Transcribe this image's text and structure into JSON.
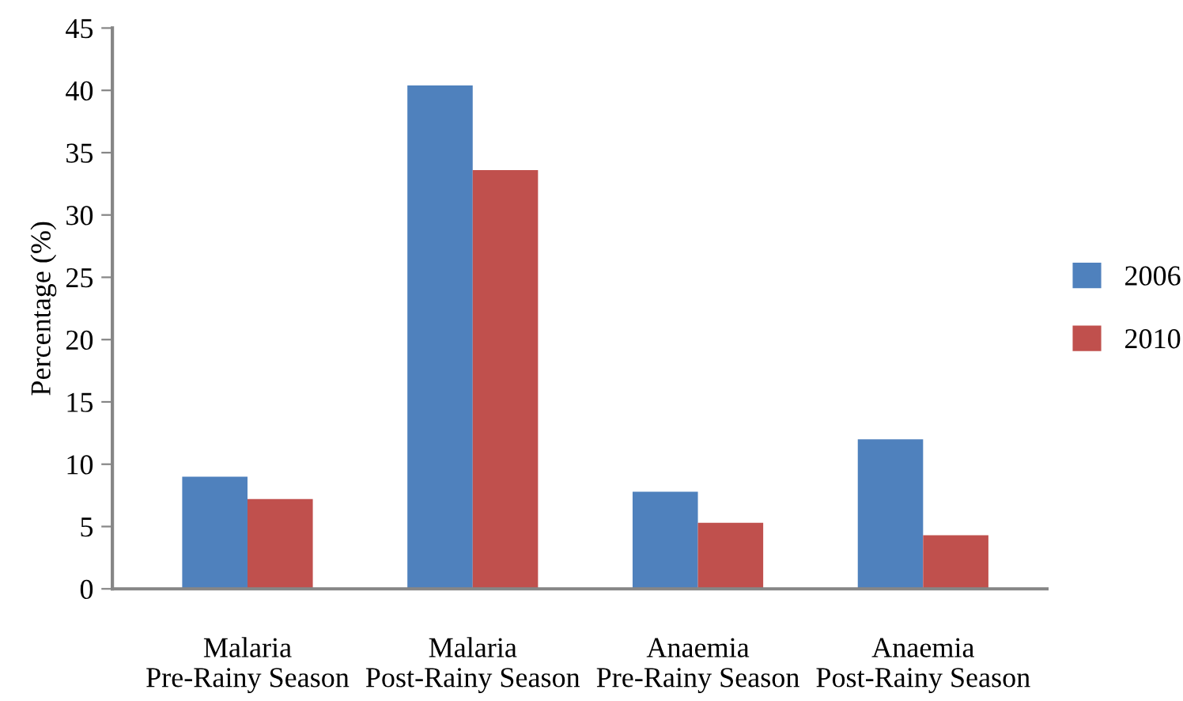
{
  "chart_data": {
    "type": "bar",
    "ylabel": "Percentage (%)",
    "categories": [
      "Malaria\nPre-Rainy Season",
      "Malaria\nPost-Rainy Season",
      "Anaemia\nPre-Rainy Season",
      "Anaemia\nPost-Rainy Season"
    ],
    "series": [
      {
        "name": "2006",
        "color": "#4f81bd",
        "values": [
          9.0,
          40.4,
          7.8,
          12.0
        ]
      },
      {
        "name": "2010",
        "color": "#c0504d",
        "values": [
          7.2,
          33.6,
          5.3,
          4.3
        ]
      }
    ],
    "ylim": [
      0,
      45
    ],
    "yticks": [
      0,
      5,
      10,
      15,
      20,
      25,
      30,
      35,
      40,
      45
    ],
    "grid": false,
    "legend": "right"
  }
}
